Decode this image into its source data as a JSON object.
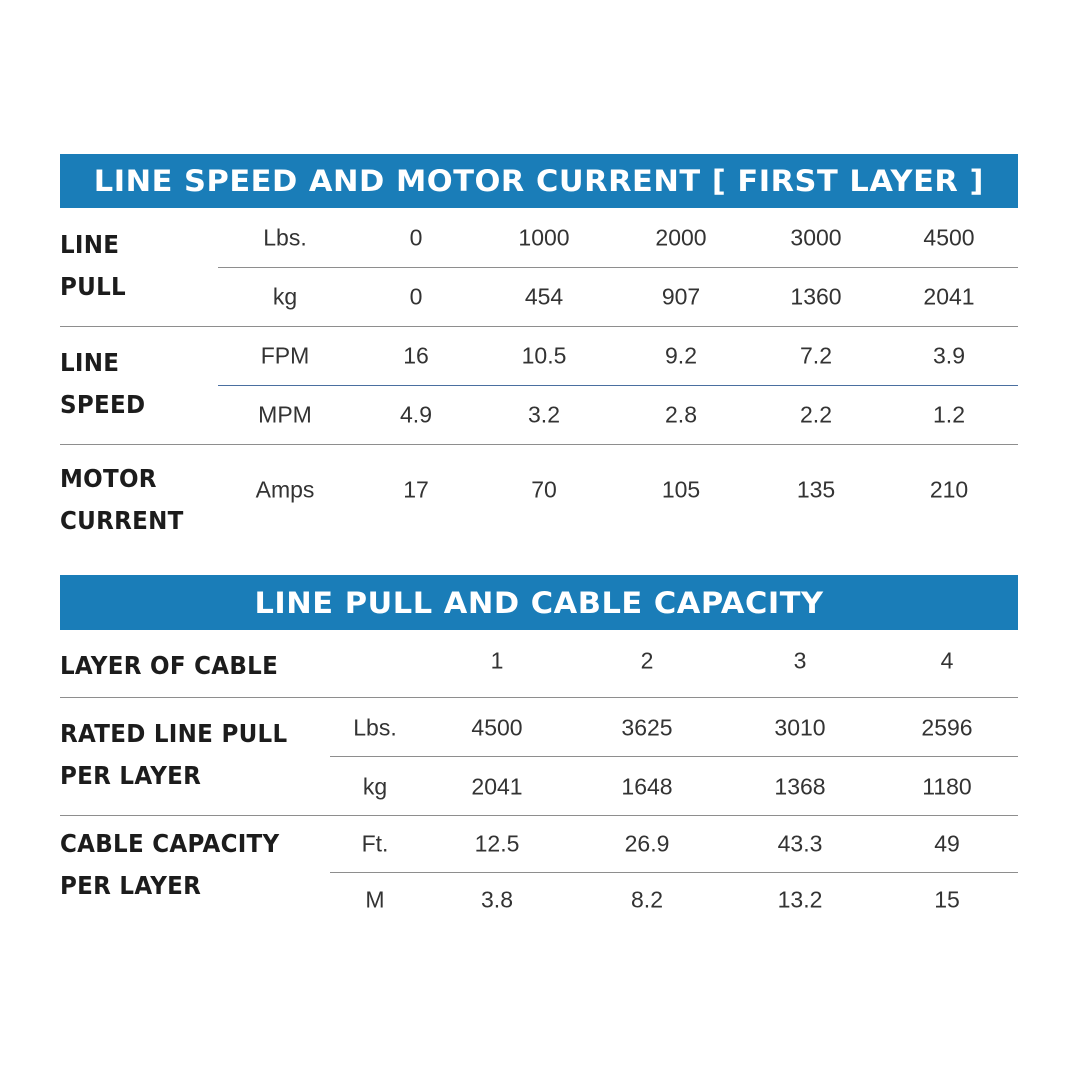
{
  "table1": {
    "title": "LINE SPEED AND MOTOR CURRENT [ FIRST LAYER ]",
    "groups": [
      {
        "label": [
          "LINE",
          "PULL"
        ],
        "rows": [
          {
            "unit": "Lbs.",
            "values": [
              "0",
              "1000",
              "2000",
              "3000",
              "4500"
            ]
          },
          {
            "unit": "kg",
            "values": [
              "0",
              "454",
              "907",
              "1360",
              "2041"
            ]
          }
        ]
      },
      {
        "label": [
          "LINE",
          "SPEED"
        ],
        "rows": [
          {
            "unit": "FPM",
            "values": [
              "16",
              "10.5",
              "9.2",
              "7.2",
              "3.9"
            ]
          },
          {
            "unit": "MPM",
            "values": [
              "4.9",
              "3.2",
              "2.8",
              "2.2",
              "1.2"
            ]
          }
        ]
      },
      {
        "label": [
          "MOTOR",
          "CURRENT"
        ],
        "rows": [
          {
            "unit": "Amps",
            "values": [
              "17",
              "70",
              "105",
              "135",
              "210"
            ]
          }
        ]
      }
    ]
  },
  "table2": {
    "title": "LINE PULL AND CABLE CAPACITY",
    "header": {
      "label": "LAYER OF CABLE",
      "values": [
        "1",
        "2",
        "3",
        "4"
      ]
    },
    "groups": [
      {
        "label": [
          "RATED LINE PULL",
          "PER LAYER"
        ],
        "rows": [
          {
            "unit": "Lbs.",
            "values": [
              "4500",
              "3625",
              "3010",
              "2596"
            ]
          },
          {
            "unit": "kg",
            "values": [
              "2041",
              "1648",
              "1368",
              "1180"
            ]
          }
        ]
      },
      {
        "label": [
          "CABLE CAPACITY",
          "PER LAYER"
        ],
        "rows": [
          {
            "unit": "Ft.",
            "values": [
              "12.5",
              "26.9",
              "43.3",
              "49"
            ]
          },
          {
            "unit": "M",
            "values": [
              "3.8",
              "8.2",
              "13.2",
              "15"
            ]
          }
        ]
      }
    ]
  },
  "colors": {
    "header_bg": "#1a7db8",
    "header_text": "#ffffff"
  }
}
